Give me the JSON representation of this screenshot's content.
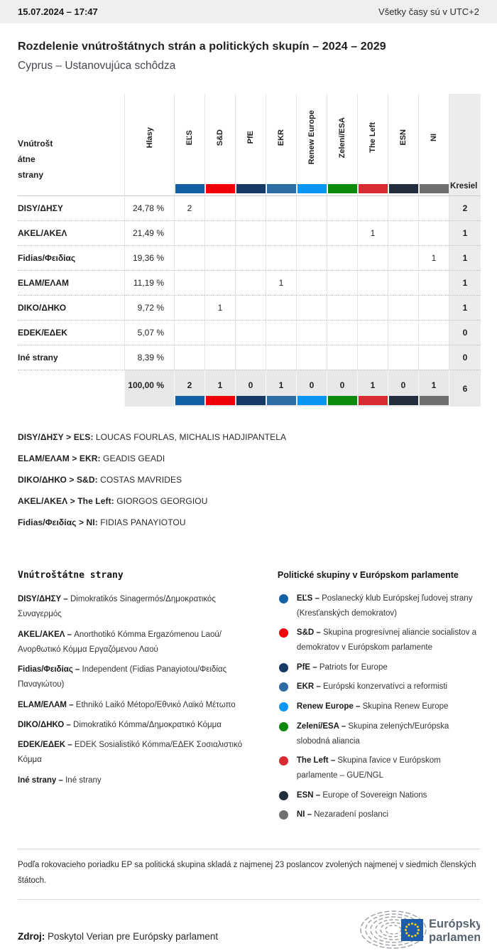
{
  "header": {
    "datetime": "15.07.2024 – 17:47",
    "timezone_note": "Všetky časy sú v UTC+2"
  },
  "title": "Rozdelenie vnútroštátnych strán a politických skupín – 2024 – 2029",
  "subtitle": "Cyprus – Ustanovujúca schôdza",
  "table": {
    "first_col_header_lines": [
      "Vnútrošt",
      "átne",
      "strany"
    ],
    "votes_header": "Hlasy",
    "seats_header": "Kresiel",
    "groups": [
      {
        "id": "els",
        "label": "EĽS",
        "color": "#1261a5"
      },
      {
        "id": "sd",
        "label": "S&D",
        "color": "#f10008"
      },
      {
        "id": "pfe",
        "label": "PfE",
        "color": "#163a66"
      },
      {
        "id": "ekr",
        "label": "EKR",
        "color": "#2e6ca5"
      },
      {
        "id": "renew",
        "label": "Renew Europe",
        "color": "#0b96f5"
      },
      {
        "id": "greens",
        "label": "Zelení/ESA",
        "color": "#0b8a0b"
      },
      {
        "id": "left",
        "label": "The Left",
        "color": "#d92b32"
      },
      {
        "id": "esn",
        "label": "ESN",
        "color": "#232e3c"
      },
      {
        "id": "ni",
        "label": "NI",
        "color": "#6f6f6f"
      }
    ],
    "rows": [
      {
        "party": "DISY/ΔΗΣΥ",
        "votes": "24,78 %",
        "cells": [
          "2",
          "",
          "",
          "",
          "",
          "",
          "",
          "",
          ""
        ],
        "seats": "2"
      },
      {
        "party": "AKEL/ΑΚΕΛ",
        "votes": "21,49 %",
        "cells": [
          "",
          "",
          "",
          "",
          "",
          "",
          "1",
          "",
          ""
        ],
        "seats": "1"
      },
      {
        "party": "Fidias/Φειδίας",
        "votes": "19,36 %",
        "cells": [
          "",
          "",
          "",
          "",
          "",
          "",
          "",
          "",
          "1"
        ],
        "seats": "1"
      },
      {
        "party": "ELAM/ΕΛΑΜ",
        "votes": "11,19 %",
        "cells": [
          "",
          "",
          "",
          "1",
          "",
          "",
          "",
          "",
          ""
        ],
        "seats": "1"
      },
      {
        "party": "DIKO/ΔΗΚΟ",
        "votes": "9,72 %",
        "cells": [
          "",
          "1",
          "",
          "",
          "",
          "",
          "",
          "",
          ""
        ],
        "seats": "1"
      },
      {
        "party": "EDEK/ΕΔΕΚ",
        "votes": "5,07 %",
        "cells": [
          "",
          "",
          "",
          "",
          "",
          "",
          "",
          "",
          ""
        ],
        "seats": "0"
      },
      {
        "party": "Iné strany",
        "votes": "8,39 %",
        "cells": [
          "",
          "",
          "",
          "",
          "",
          "",
          "",
          "",
          ""
        ],
        "seats": "0"
      }
    ],
    "total": {
      "votes": "100,00 %",
      "cells": [
        "2",
        "1",
        "0",
        "1",
        "0",
        "0",
        "1",
        "0",
        "1"
      ],
      "seats": "6"
    }
  },
  "members": [
    {
      "prefix": "DISY/ΔΗΣΥ > EĽS:",
      "names": "LOUCAS FOURLAS, MICHALIS HADJIPANTELA"
    },
    {
      "prefix": "ELAM/ΕΛΑΜ > EKR:",
      "names": "GEADIS GEADI"
    },
    {
      "prefix": "DIKO/ΔΗΚΟ > S&D:",
      "names": "COSTAS MAVRIDES"
    },
    {
      "prefix": "AKEL/ΑΚΕΛ > The Left:",
      "names": "GIORGOS GEORGIOU"
    },
    {
      "prefix": "Fidias/Φειδίας > NI:",
      "names": "FIDIAS PANAYIOTOU"
    }
  ],
  "parties_legend": {
    "heading": "Vnútroštátne strany",
    "items": [
      {
        "label": "DISY/ΔΗΣΥ –",
        "description": "Dimokratikós Sinagermós/Δημοκρατικός Συναγερμός"
      },
      {
        "label": "AKEL/ΑΚΕΛ –",
        "description": "Anorthotikó Kómma Ergazómenou Laoú/Ανορθωτικό Κόμμα Εργαζόμενου Λαού"
      },
      {
        "label": "Fidias/Φειδίας –",
        "description": "Independent (Fidias Panayiotou/Φειδίας Παναγιώτου)"
      },
      {
        "label": "ELAM/ΕΛΑΜ –",
        "description": "Ethnikó Laikó Métopo/Εθνικό Λαϊκό Μέτωπο"
      },
      {
        "label": "DIKO/ΔΗΚΟ –",
        "description": "Dimokratikó Kómma/Δημοκρατικό Κόμμα"
      },
      {
        "label": "EDEK/ΕΔΕΚ –",
        "description": "EDEK Sosialistikó Kómma/ΕΔΕΚ Σοσιαλιστικό Κόμμα"
      },
      {
        "label": "Iné strany –",
        "description": "Iné strany"
      }
    ]
  },
  "groups_legend": {
    "heading": "Politické skupiny v Európskom parlamente",
    "items": [
      {
        "group": "els",
        "label": "EĽS –",
        "description": "Poslanecký klub Európskej ľudovej strany (Kresťanských demokratov)"
      },
      {
        "group": "sd",
        "label": "S&D –",
        "description": "Skupina progresívnej aliancie socialistov a demokratov v Európskom parlamente"
      },
      {
        "group": "pfe",
        "label": "PfE –",
        "description": "Patriots for Europe"
      },
      {
        "group": "ekr",
        "label": "EKR –",
        "description": "Európski konzervatívci a reformisti"
      },
      {
        "group": "renew",
        "label": "Renew Europe –",
        "description": "Skupina Renew Europe"
      },
      {
        "group": "greens",
        "label": "Zelení/ESA –",
        "description": "Skupina zelených/Európska slobodná aliancia"
      },
      {
        "group": "left",
        "label": "The Left –",
        "description": "Skupina ľavice v Európskom parlamente – GUE/NGL"
      },
      {
        "group": "esn",
        "label": "ESN –",
        "description": "Europe of Sovereign Nations"
      },
      {
        "group": "ni",
        "label": "NI –",
        "description": "Nezaradení poslanci"
      }
    ]
  },
  "footnote": "Podľa rokovacieho poriadku EP sa politická skupina skladá z najmenej 23 poslancov zvolených najmenej v siedmich členských štátoch.",
  "source": {
    "label": "Zdroj:",
    "text": "Poskytol Verian pre Európsky parlament"
  },
  "logo": {
    "line1": "Európsky",
    "line2": "parlament"
  }
}
